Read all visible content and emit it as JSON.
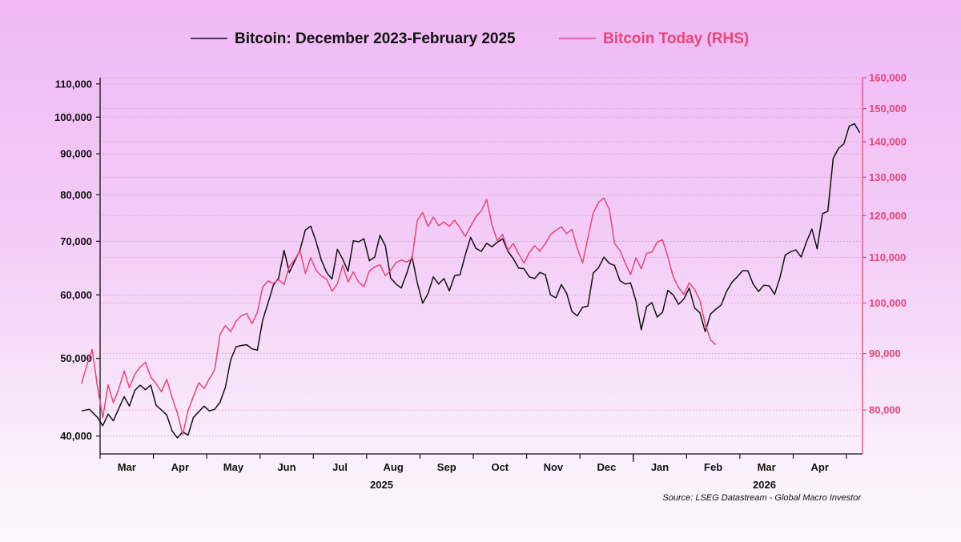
{
  "colors": {
    "series_black": "#111111",
    "series_pink": "#e8457a",
    "grid": "#b9a6bf"
  },
  "chart_data": {
    "type": "line",
    "legend": [
      "Bitcoin: December 2023-February 2025",
      "Bitcoin Today (RHS)"
    ],
    "x_months": [
      "Mar",
      "Apr",
      "May",
      "Jun",
      "Jul",
      "Aug",
      "Sep",
      "Oct",
      "Nov",
      "Dec",
      "Jan",
      "Feb",
      "Mar",
      "Apr"
    ],
    "x_years": [
      "2025",
      "2026"
    ],
    "y_left": {
      "ticks": [
        "110,000",
        "100,000",
        "90,000",
        "80,000",
        "70,000",
        "60,000",
        "50,000",
        "40,000"
      ],
      "tick_values": [
        110000,
        100000,
        90000,
        80000,
        70000,
        60000,
        50000,
        40000
      ],
      "scale": "log",
      "range": [
        38000,
        112000
      ]
    },
    "y_right": {
      "ticks": [
        "160,000",
        "150,000",
        "140,000",
        "130,000",
        "120,000",
        "110,000",
        "100,000",
        "90,000",
        "80,000"
      ],
      "tick_values": [
        160000,
        150000,
        140000,
        130000,
        120000,
        110000,
        100000,
        90000,
        80000
      ],
      "scale": "log",
      "range": [
        73000,
        160000
      ]
    },
    "x_domain": [
      0,
      14.3
    ],
    "series": [
      {
        "name": "Bitcoin: December 2023-February 2025",
        "axis": "left",
        "points": [
          [
            -0.35,
            43000
          ],
          [
            -0.2,
            43200
          ],
          [
            -0.05,
            42200
          ],
          [
            0.05,
            41200
          ],
          [
            0.15,
            42600
          ],
          [
            0.25,
            41800
          ],
          [
            0.35,
            43300
          ],
          [
            0.45,
            44800
          ],
          [
            0.55,
            43600
          ],
          [
            0.65,
            45600
          ],
          [
            0.75,
            46300
          ],
          [
            0.85,
            45700
          ],
          [
            0.95,
            46300
          ],
          [
            1.05,
            43700
          ],
          [
            1.15,
            43100
          ],
          [
            1.25,
            42500
          ],
          [
            1.35,
            40600
          ],
          [
            1.45,
            39800
          ],
          [
            1.55,
            40500
          ],
          [
            1.65,
            40100
          ],
          [
            1.75,
            42200
          ],
          [
            1.85,
            42900
          ],
          [
            1.95,
            43600
          ],
          [
            2.05,
            43000
          ],
          [
            2.15,
            43200
          ],
          [
            2.25,
            44100
          ],
          [
            2.35,
            46000
          ],
          [
            2.45,
            49800
          ],
          [
            2.55,
            51700
          ],
          [
            2.65,
            51900
          ],
          [
            2.75,
            52000
          ],
          [
            2.85,
            51400
          ],
          [
            2.95,
            51200
          ],
          [
            3.05,
            55800
          ],
          [
            3.15,
            58600
          ],
          [
            3.25,
            61700
          ],
          [
            3.35,
            63000
          ],
          [
            3.45,
            68200
          ],
          [
            3.55,
            64000
          ],
          [
            3.65,
            66100
          ],
          [
            3.75,
            68300
          ],
          [
            3.85,
            72300
          ],
          [
            3.95,
            73100
          ],
          [
            4.05,
            70000
          ],
          [
            4.15,
            66300
          ],
          [
            4.25,
            64000
          ],
          [
            4.35,
            62800
          ],
          [
            4.45,
            68400
          ],
          [
            4.55,
            66500
          ],
          [
            4.65,
            64200
          ],
          [
            4.75,
            70100
          ],
          [
            4.85,
            69900
          ],
          [
            4.95,
            70500
          ],
          [
            5.05,
            66200
          ],
          [
            5.15,
            66900
          ],
          [
            5.25,
            71200
          ],
          [
            5.35,
            69100
          ],
          [
            5.45,
            63000
          ],
          [
            5.55,
            61900
          ],
          [
            5.65,
            61200
          ],
          [
            5.75,
            63800
          ],
          [
            5.85,
            67000
          ],
          [
            5.95,
            62100
          ],
          [
            6.05,
            58600
          ],
          [
            6.15,
            60200
          ],
          [
            6.25,
            63200
          ],
          [
            6.35,
            61900
          ],
          [
            6.45,
            62900
          ],
          [
            6.55,
            60700
          ],
          [
            6.65,
            63400
          ],
          [
            6.75,
            63600
          ],
          [
            6.85,
            67300
          ],
          [
            6.95,
            70800
          ],
          [
            7.05,
            68600
          ],
          [
            7.15,
            68000
          ],
          [
            7.25,
            69600
          ],
          [
            7.35,
            68900
          ],
          [
            7.45,
            69800
          ],
          [
            7.55,
            70500
          ],
          [
            7.65,
            68000
          ],
          [
            7.75,
            66600
          ],
          [
            7.85,
            64800
          ],
          [
            7.95,
            64700
          ],
          [
            8.05,
            63200
          ],
          [
            8.15,
            62900
          ],
          [
            8.25,
            64000
          ],
          [
            8.35,
            63600
          ],
          [
            8.45,
            60000
          ],
          [
            8.55,
            59500
          ],
          [
            8.65,
            61800
          ],
          [
            8.75,
            60300
          ],
          [
            8.85,
            57200
          ],
          [
            8.95,
            56500
          ],
          [
            9.05,
            57900
          ],
          [
            9.15,
            58100
          ],
          [
            9.25,
            63900
          ],
          [
            9.35,
            64900
          ],
          [
            9.45,
            66900
          ],
          [
            9.55,
            65700
          ],
          [
            9.65,
            65300
          ],
          [
            9.75,
            62500
          ],
          [
            9.85,
            61900
          ],
          [
            9.95,
            62100
          ],
          [
            10.05,
            59000
          ],
          [
            10.15,
            54300
          ],
          [
            10.25,
            58000
          ],
          [
            10.35,
            58700
          ],
          [
            10.45,
            56300
          ],
          [
            10.55,
            57100
          ],
          [
            10.65,
            60800
          ],
          [
            10.75,
            60000
          ],
          [
            10.85,
            58400
          ],
          [
            10.95,
            59300
          ],
          [
            11.05,
            61200
          ],
          [
            11.15,
            57800
          ],
          [
            11.25,
            57000
          ],
          [
            11.35,
            54000
          ],
          [
            11.45,
            56800
          ],
          [
            11.55,
            57600
          ],
          [
            11.65,
            58300
          ],
          [
            11.75,
            60600
          ],
          [
            11.85,
            62200
          ],
          [
            11.95,
            63200
          ],
          [
            12.05,
            64300
          ],
          [
            12.15,
            64300
          ],
          [
            12.25,
            61900
          ],
          [
            12.35,
            60600
          ],
          [
            12.45,
            61700
          ],
          [
            12.55,
            61600
          ],
          [
            12.65,
            60100
          ],
          [
            12.75,
            63000
          ],
          [
            12.85,
            67300
          ],
          [
            12.95,
            67900
          ],
          [
            13.05,
            68300
          ],
          [
            13.15,
            66900
          ],
          [
            13.25,
            69900
          ],
          [
            13.35,
            72500
          ],
          [
            13.45,
            68500
          ],
          [
            13.55,
            75800
          ],
          [
            13.65,
            76300
          ],
          [
            13.75,
            88800
          ],
          [
            13.85,
            91400
          ],
          [
            13.95,
            92600
          ],
          [
            14.05,
            97400
          ],
          [
            14.15,
            98100
          ],
          [
            14.25,
            95600
          ]
        ]
      },
      {
        "name": "Bitcoin Today (RHS)",
        "axis": "right",
        "points": [
          [
            -0.35,
            84500
          ],
          [
            -0.25,
            87800
          ],
          [
            -0.15,
            90800
          ],
          [
            -0.05,
            84000
          ],
          [
            0.05,
            78700
          ],
          [
            0.15,
            84300
          ],
          [
            0.25,
            81200
          ],
          [
            0.35,
            83600
          ],
          [
            0.45,
            86800
          ],
          [
            0.55,
            83800
          ],
          [
            0.65,
            86200
          ],
          [
            0.75,
            87500
          ],
          [
            0.85,
            88400
          ],
          [
            0.95,
            85700
          ],
          [
            1.05,
            84500
          ],
          [
            1.15,
            83100
          ],
          [
            1.25,
            85300
          ],
          [
            1.35,
            82100
          ],
          [
            1.45,
            79500
          ],
          [
            1.55,
            76000
          ],
          [
            1.65,
            79900
          ],
          [
            1.75,
            82300
          ],
          [
            1.85,
            84700
          ],
          [
            1.95,
            83700
          ],
          [
            2.05,
            85400
          ],
          [
            2.15,
            87000
          ],
          [
            2.25,
            93700
          ],
          [
            2.35,
            95400
          ],
          [
            2.45,
            94200
          ],
          [
            2.55,
            96300
          ],
          [
            2.65,
            97400
          ],
          [
            2.75,
            97800
          ],
          [
            2.85,
            95800
          ],
          [
            2.95,
            98100
          ],
          [
            3.05,
            103400
          ],
          [
            3.15,
            104700
          ],
          [
            3.25,
            104200
          ],
          [
            3.35,
            105000
          ],
          [
            3.45,
            103900
          ],
          [
            3.55,
            107900
          ],
          [
            3.65,
            109500
          ],
          [
            3.75,
            111500
          ],
          [
            3.85,
            106400
          ],
          [
            3.95,
            109900
          ],
          [
            4.05,
            107100
          ],
          [
            4.15,
            105800
          ],
          [
            4.25,
            105100
          ],
          [
            4.35,
            102500
          ],
          [
            4.45,
            104100
          ],
          [
            4.55,
            108200
          ],
          [
            4.65,
            104500
          ],
          [
            4.75,
            106700
          ],
          [
            4.85,
            104400
          ],
          [
            4.95,
            103500
          ],
          [
            5.05,
            106900
          ],
          [
            5.15,
            107800
          ],
          [
            5.25,
            108300
          ],
          [
            5.35,
            105900
          ],
          [
            5.45,
            107000
          ],
          [
            5.55,
            108800
          ],
          [
            5.65,
            109400
          ],
          [
            5.75,
            108900
          ],
          [
            5.85,
            109700
          ],
          [
            5.95,
            118800
          ],
          [
            6.05,
            120800
          ],
          [
            6.15,
            117300
          ],
          [
            6.25,
            119600
          ],
          [
            6.35,
            117500
          ],
          [
            6.45,
            118400
          ],
          [
            6.55,
            117300
          ],
          [
            6.65,
            118900
          ],
          [
            6.75,
            116900
          ],
          [
            6.85,
            114900
          ],
          [
            6.95,
            117400
          ],
          [
            7.05,
            119700
          ],
          [
            7.15,
            121200
          ],
          [
            7.25,
            124100
          ],
          [
            7.35,
            117700
          ],
          [
            7.45,
            113900
          ],
          [
            7.55,
            115400
          ],
          [
            7.65,
            111600
          ],
          [
            7.75,
            113200
          ],
          [
            7.85,
            110800
          ],
          [
            7.95,
            108700
          ],
          [
            8.05,
            111100
          ],
          [
            8.15,
            112700
          ],
          [
            8.25,
            111400
          ],
          [
            8.35,
            113200
          ],
          [
            8.45,
            115300
          ],
          [
            8.55,
            116400
          ],
          [
            8.65,
            117200
          ],
          [
            8.75,
            115600
          ],
          [
            8.85,
            116600
          ],
          [
            8.95,
            112100
          ],
          [
            9.05,
            108700
          ],
          [
            9.15,
            114600
          ],
          [
            9.25,
            120700
          ],
          [
            9.35,
            123400
          ],
          [
            9.45,
            124500
          ],
          [
            9.55,
            121600
          ],
          [
            9.65,
            113200
          ],
          [
            9.75,
            111600
          ],
          [
            9.85,
            108700
          ],
          [
            9.95,
            106100
          ],
          [
            10.05,
            109900
          ],
          [
            10.15,
            107400
          ],
          [
            10.25,
            110900
          ],
          [
            10.35,
            111200
          ],
          [
            10.45,
            113600
          ],
          [
            10.55,
            114100
          ],
          [
            10.65,
            110100
          ],
          [
            10.75,
            105600
          ],
          [
            10.85,
            103300
          ],
          [
            10.95,
            101800
          ],
          [
            11.05,
            104300
          ],
          [
            11.15,
            102900
          ],
          [
            11.25,
            100600
          ],
          [
            11.35,
            95700
          ],
          [
            11.45,
            92600
          ],
          [
            11.55,
            91700
          ]
        ]
      }
    ],
    "source": "Source: LSEG Datastream - Global Macro Investor"
  }
}
